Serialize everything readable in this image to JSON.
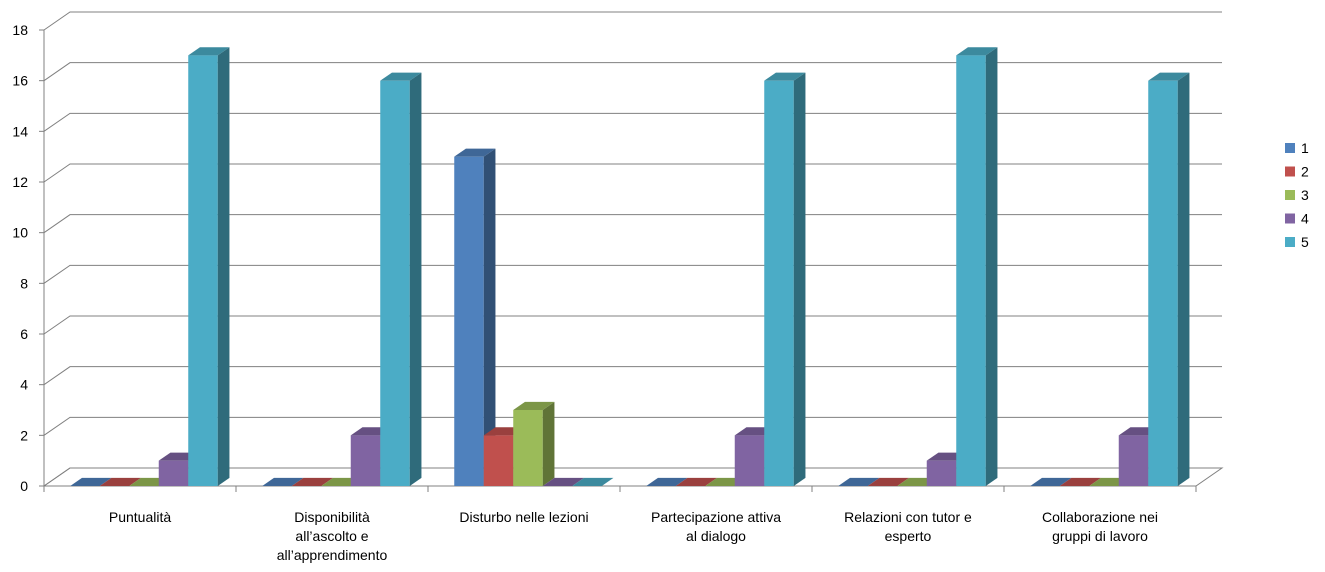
{
  "chart_data": {
    "type": "bar",
    "categories": [
      [
        "Puntualità"
      ],
      [
        "Disponibilità",
        "all’ascolto e",
        "all’apprendimento"
      ],
      [
        "Disturbo nelle lezioni"
      ],
      [
        "Partecipazione attiva",
        "al dialogo"
      ],
      [
        "Relazioni con tutor e",
        "esperto"
      ],
      [
        "Collaborazione  nei",
        "gruppi di lavoro"
      ]
    ],
    "series": [
      {
        "name": "1",
        "color": "#4f81bd",
        "values": [
          0,
          0,
          13,
          0,
          0,
          0
        ]
      },
      {
        "name": "2",
        "color": "#c0504d",
        "values": [
          0,
          0,
          2,
          0,
          0,
          0
        ]
      },
      {
        "name": "3",
        "color": "#9bbb59",
        "values": [
          0,
          0,
          3,
          0,
          0,
          0
        ]
      },
      {
        "name": "4",
        "color": "#8064a2",
        "values": [
          1,
          2,
          0,
          2,
          1,
          2
        ]
      },
      {
        "name": "5",
        "color": "#4bacc6",
        "values": [
          17,
          16,
          0,
          16,
          17,
          16
        ]
      }
    ],
    "ylim": [
      0,
      18
    ],
    "yticks": [
      "0",
      "2",
      "4",
      "6",
      "8",
      "10",
      "12",
      "14",
      "16",
      "18"
    ],
    "grid": true,
    "legend": "right",
    "style": "3d-clustered-column"
  }
}
